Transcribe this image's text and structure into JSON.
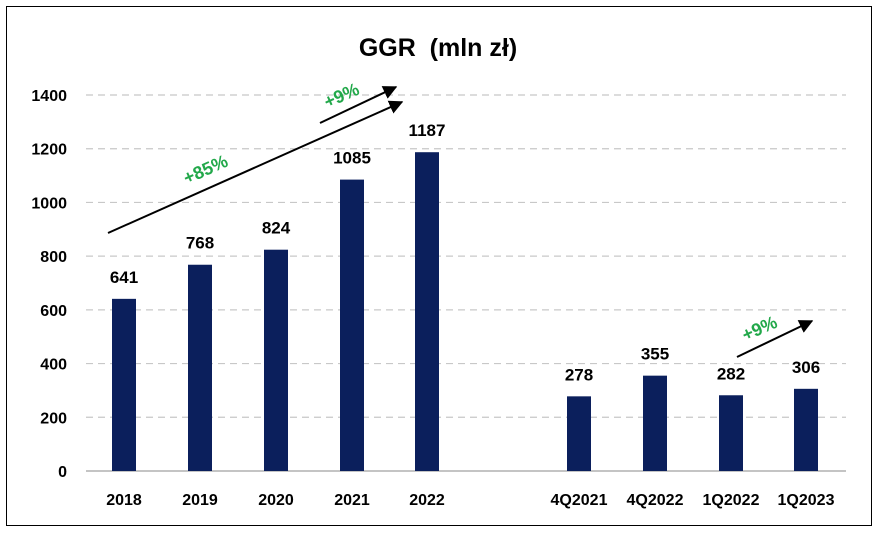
{
  "chart_data": {
    "type": "bar",
    "title": "GGR  (mln zł)",
    "xlabel": "",
    "ylabel": "",
    "ylim": [
      0,
      1400
    ],
    "yticks": [
      0,
      200,
      400,
      600,
      800,
      1000,
      1200,
      1400
    ],
    "grid": true,
    "categories": [
      "2018",
      "2019",
      "2020",
      "2021",
      "2022",
      "4Q2021",
      "4Q2022",
      "1Q2022",
      "1Q2023"
    ],
    "values": [
      641,
      768,
      824,
      1085,
      1187,
      278,
      355,
      282,
      306
    ],
    "annotations": [
      "+85%",
      "+9%",
      "+9%"
    ],
    "colors": {
      "bar": "#0b1f5c",
      "annotation": "#22a84a",
      "grid": "#c8c8c8",
      "axis": "#7f7f7f"
    }
  }
}
